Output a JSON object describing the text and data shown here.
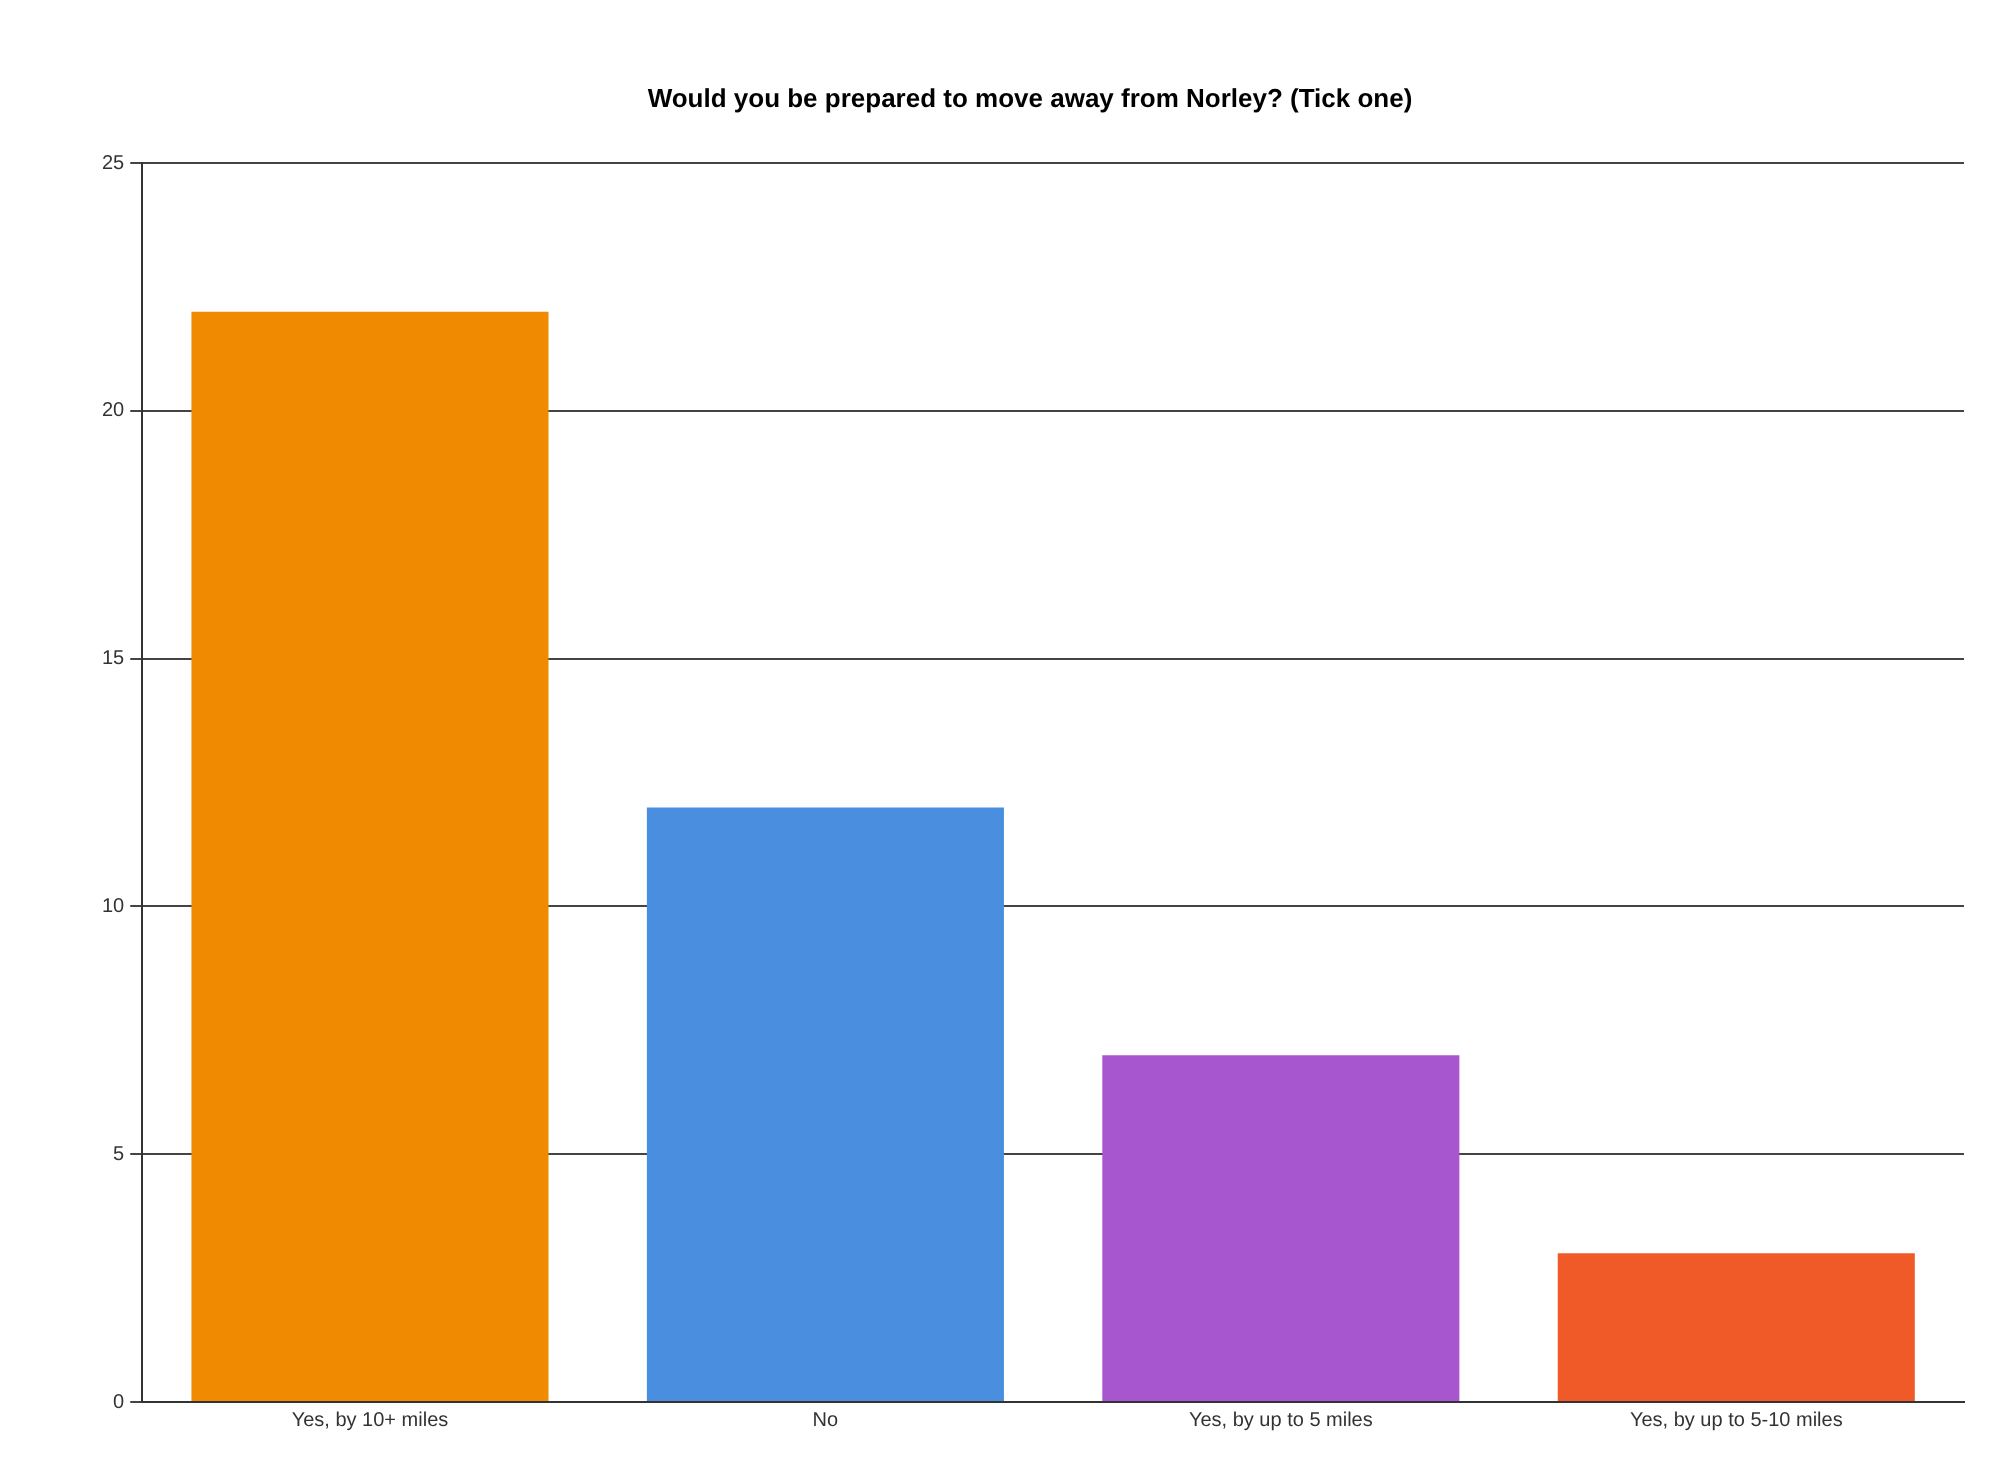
{
  "chart_data": {
    "type": "bar",
    "title": "Would you be prepared to move away from Norley? (Tick one)",
    "categories": [
      "Yes, by 10+ miles",
      "No",
      "Yes, by up to 5 miles",
      "Yes, by up to 5-10 miles"
    ],
    "values": [
      22,
      12,
      7,
      3
    ],
    "colors": [
      "#f08a00",
      "#4a8ee0",
      "#a855d0",
      "#f05a28"
    ],
    "ylim": [
      0,
      25
    ],
    "yticks": [
      0,
      5,
      10,
      15,
      20,
      25
    ],
    "grid": "y",
    "legend": false
  }
}
